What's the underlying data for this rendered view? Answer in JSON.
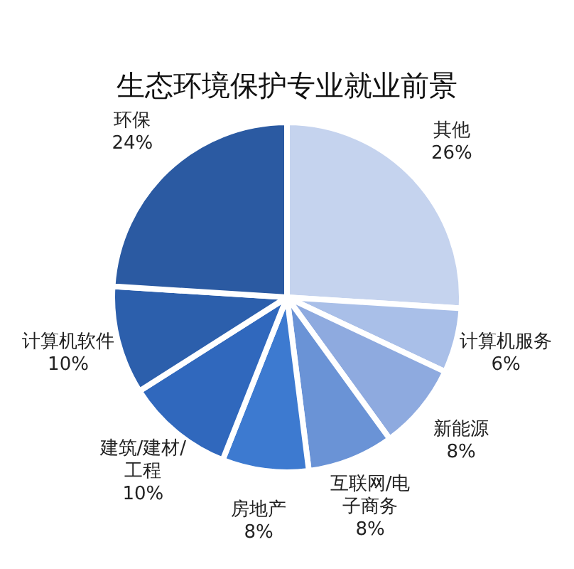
{
  "chart_data": {
    "type": "pie",
    "title": "生态环境保护专业就业前景",
    "categories": [
      "其他",
      "计算机服务",
      "新能源",
      "互联网/电子商务",
      "房地产",
      "建筑/建材/工程",
      "计算机软件",
      "环保"
    ],
    "values": [
      26,
      6,
      8,
      8,
      8,
      10,
      10,
      24
    ],
    "value_labels": [
      "26%",
      "6%",
      "8%",
      "8%",
      "8%",
      "10%",
      "10%",
      "24%"
    ],
    "colors": [
      "#c5d3ee",
      "#a9bfe8",
      "#8eaadf",
      "#6a93d6",
      "#3d7ad0",
      "#3068bd",
      "#2c5fac",
      "#2b5aa2"
    ],
    "legend": false
  }
}
